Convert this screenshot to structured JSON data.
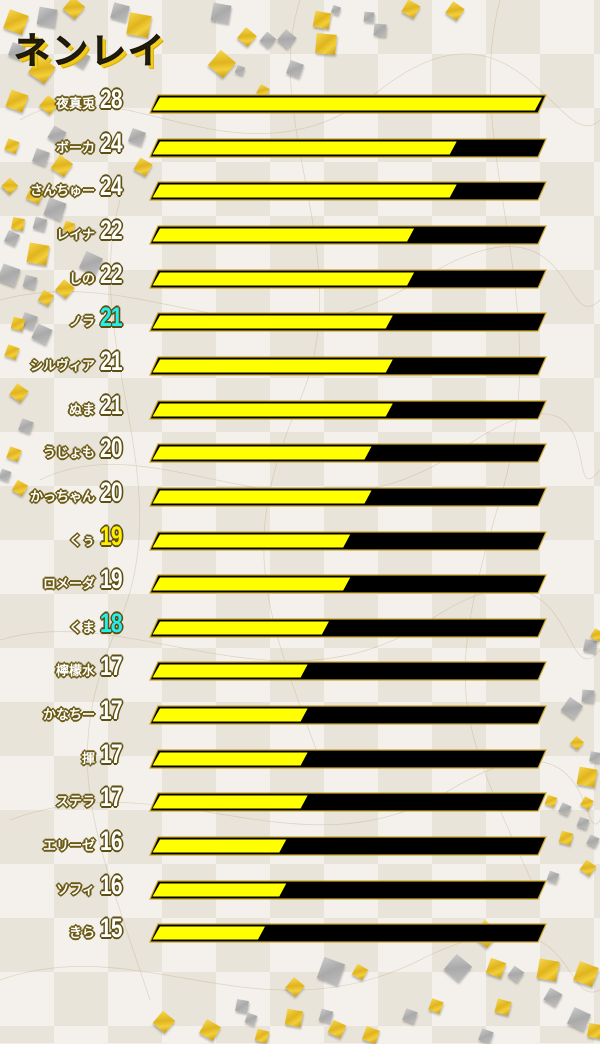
{
  "title": "ネンレイ",
  "colors": {
    "bar_fill": "#ffff00",
    "bar_track": "#000000",
    "bar_outline": "#c9a227",
    "score_default": "#ffffff",
    "score_cyan": "#22f0ee",
    "score_yellow": "#ffee00",
    "label_outline": "#6b5a14"
  },
  "chart_data": {
    "type": "bar",
    "orientation": "horizontal",
    "title": "ネンレイ",
    "xlabel": "",
    "ylabel": "",
    "grid": false,
    "legend": null,
    "categories": [
      "夜真兎",
      "ボーカ",
      "さんちゅー",
      "レイナ",
      "しの",
      "ノラ",
      "シルヴィア",
      "ぬま",
      "うじょも",
      "かっちゃん",
      "くぅ",
      "ロメーダ",
      "くま",
      "檸檬水",
      "かなちー",
      "揮",
      "ステラ",
      "エリーゼ",
      "ソフィ",
      "きら"
    ],
    "values": [
      28,
      24,
      24,
      22,
      22,
      21,
      21,
      21,
      20,
      20,
      19,
      19,
      18,
      17,
      17,
      17,
      17,
      16,
      16,
      15
    ],
    "highlight": {
      "ノラ": "cyan",
      "くま": "cyan",
      "くぅ": "yellow"
    }
  },
  "rows": [
    {
      "name": "夜真兎",
      "value": "28",
      "color": "score_default"
    },
    {
      "name": "ボーカ",
      "value": "24",
      "color": "score_default"
    },
    {
      "name": "さんちゅー",
      "value": "24",
      "color": "score_default"
    },
    {
      "name": "レイナ",
      "value": "22",
      "color": "score_default"
    },
    {
      "name": "しの",
      "value": "22",
      "color": "score_default"
    },
    {
      "name": "ノラ",
      "value": "21",
      "color": "score_cyan"
    },
    {
      "name": "シルヴィア",
      "value": "21",
      "color": "score_default"
    },
    {
      "name": "ぬま",
      "value": "21",
      "color": "score_default"
    },
    {
      "name": "うじょも",
      "value": "20",
      "color": "score_default"
    },
    {
      "name": "かっちゃん",
      "value": "20",
      "color": "score_default"
    },
    {
      "name": "くぅ",
      "value": "19",
      "color": "score_yellow"
    },
    {
      "name": "ロメーダ",
      "value": "19",
      "color": "score_default"
    },
    {
      "name": "くま",
      "value": "18",
      "color": "score_cyan"
    },
    {
      "name": "檸檬水",
      "value": "17",
      "color": "score_default"
    },
    {
      "name": "かなちー",
      "value": "17",
      "color": "score_default"
    },
    {
      "name": "揮",
      "value": "17",
      "color": "score_default"
    },
    {
      "name": "ステラ",
      "value": "17",
      "color": "score_default"
    },
    {
      "name": "エリーゼ",
      "value": "16",
      "color": "score_default"
    },
    {
      "name": "ソフィ",
      "value": "16",
      "color": "score_default"
    },
    {
      "name": "きら",
      "value": "15",
      "color": "score_default"
    }
  ]
}
